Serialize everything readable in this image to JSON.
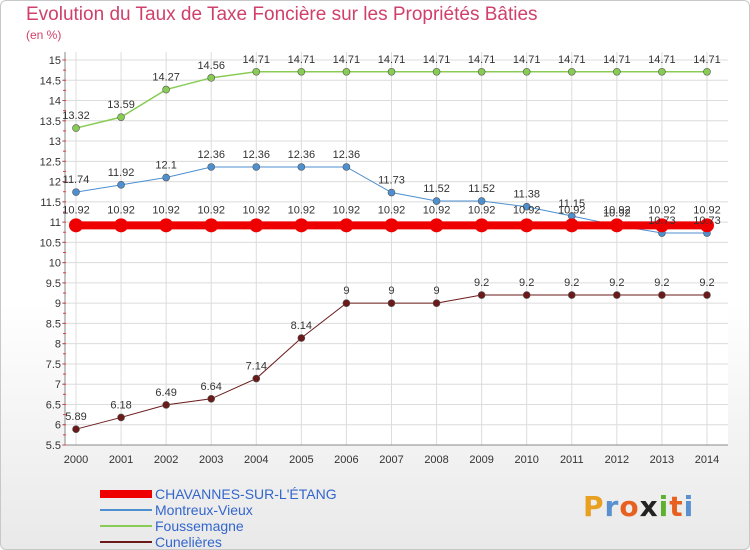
{
  "header": {
    "title": "Evolution du Taux de Taxe Foncière sur les Propriétés Bâties",
    "unit": "(en %)"
  },
  "logo": {
    "letters": [
      "P",
      "r",
      "o",
      "x",
      "i",
      "t",
      "i"
    ],
    "colors": [
      "#e8a020",
      "#5a8fd0",
      "#e86020",
      "#222222",
      "#60b030",
      "#e86020",
      "#5a8fd0"
    ]
  },
  "chart_data": {
    "type": "line",
    "x": [
      "2000",
      "2001",
      "2002",
      "2003",
      "2004",
      "2005",
      "2006",
      "2007",
      "2008",
      "2009",
      "2010",
      "2011",
      "2012",
      "2013",
      "2014"
    ],
    "ylim": [
      5.5,
      15
    ],
    "yticks": [
      "5.5",
      "6",
      "6.5",
      "7",
      "7.5",
      "8",
      "8.5",
      "9",
      "9.5",
      "10",
      "10.5",
      "11",
      "11.5",
      "12",
      "12.5",
      "13",
      "13.5",
      "14",
      "14.5",
      "15"
    ],
    "grid": true,
    "legend_position": "bottom-left",
    "series": [
      {
        "name": "CHAVANNES-SUR-L'ÉTANG",
        "color": "#ee0000",
        "width": 8,
        "marker": 7,
        "values": [
          10.92,
          10.92,
          10.92,
          10.92,
          10.92,
          10.92,
          10.92,
          10.92,
          10.92,
          10.92,
          10.92,
          10.92,
          10.92,
          10.92,
          10.92
        ],
        "labels": [
          "10.92",
          "10.92",
          "10.92",
          "10.92",
          "10.92",
          "10.92",
          "10.92",
          "10.92",
          "10.92",
          "10.92",
          "10.92",
          "10.92",
          "10.92",
          "10.92",
          "10.92"
        ]
      },
      {
        "name": "Montreux-Vieux",
        "color": "#4d8fcf",
        "width": 1,
        "marker": 3.5,
        "values": [
          11.74,
          11.92,
          12.1,
          12.36,
          12.36,
          12.36,
          12.36,
          11.73,
          11.52,
          11.52,
          11.38,
          11.15,
          10.92,
          10.73,
          10.73
        ],
        "labels": [
          "11.74",
          "11.92",
          "12.1",
          "12.36",
          "12.36",
          "12.36",
          "12.36",
          "11.73",
          "11.52",
          "11.52",
          "11.38",
          "11.15",
          "10.92",
          "10.73",
          "10.73"
        ]
      },
      {
        "name": "Foussemagne",
        "color": "#88cc55",
        "width": 1.5,
        "marker": 3.5,
        "values": [
          13.32,
          13.59,
          14.27,
          14.56,
          14.71,
          14.71,
          14.71,
          14.71,
          14.71,
          14.71,
          14.71,
          14.71,
          14.71,
          14.71,
          14.71
        ],
        "labels": [
          "13.32",
          "13.59",
          "14.27",
          "14.56",
          "14.71",
          "14.71",
          "14.71",
          "14.71",
          "14.71",
          "14.71",
          "14.71",
          "14.71",
          "14.71",
          "14.71",
          "14.71"
        ]
      },
      {
        "name": "Cunelières",
        "color": "#6b1a1a",
        "width": 1,
        "marker": 3.5,
        "values": [
          5.89,
          6.18,
          6.49,
          6.64,
          7.14,
          8.14,
          9,
          9,
          9,
          9.2,
          9.2,
          9.2,
          9.2,
          9.2,
          9.2
        ],
        "labels": [
          "5.89",
          "6.18",
          "6.49",
          "6.64",
          "7.14",
          "8.14",
          "9",
          "9",
          "9",
          "9.2",
          "9.2",
          "9.2",
          "9.2",
          "9.2",
          "9.2"
        ]
      }
    ]
  }
}
